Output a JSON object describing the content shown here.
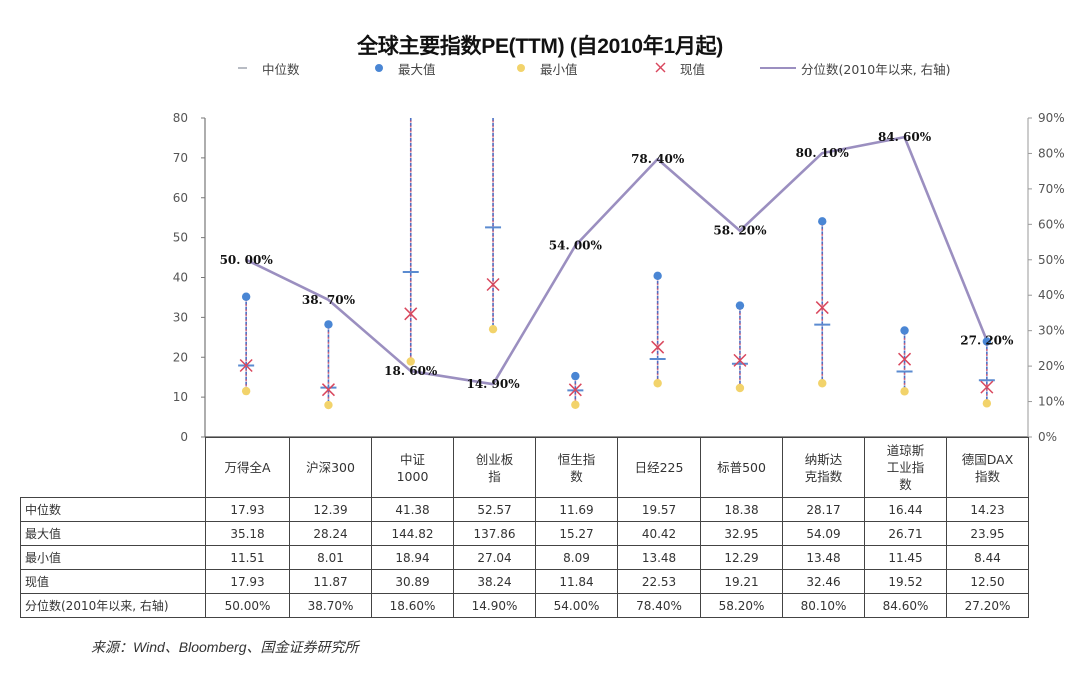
{
  "chart_data": {
    "type": "scatter+line",
    "title": "全球主要指数PE(TTM)  (自2010年1月起)",
    "legend": [
      {
        "key": "median",
        "label": "中位数",
        "marker": "dash",
        "color": "#5b8bd0"
      },
      {
        "key": "max",
        "label": "最大值",
        "marker": "circle",
        "color": "#4a86d4"
      },
      {
        "key": "min",
        "label": "最小值",
        "marker": "circle",
        "color": "#f2d36b"
      },
      {
        "key": "current",
        "label": "现值",
        "marker": "x",
        "color": "#d9475d"
      },
      {
        "key": "percentile",
        "label": "分位数(2010年以来, 右轴)",
        "marker": "line",
        "color": "#9b8fc0"
      }
    ],
    "legend_position": "top",
    "categories": [
      "万得全A",
      "沪深300",
      "中证\n1000",
      "创业板\n指",
      "恒生指\n数",
      "日经225",
      "标普500",
      "纳斯达\n克指数",
      "道琼斯\n工业指\n数",
      "德国DAX\n指数"
    ],
    "series": [
      {
        "name": "中位数",
        "key": "median",
        "values": [
          17.93,
          12.39,
          41.38,
          52.57,
          11.69,
          19.57,
          18.38,
          28.17,
          16.44,
          14.23
        ]
      },
      {
        "name": "最大值",
        "key": "max",
        "values": [
          35.18,
          28.24,
          144.82,
          137.86,
          15.27,
          40.42,
          32.95,
          54.09,
          26.71,
          23.95
        ]
      },
      {
        "name": "最小值",
        "key": "min",
        "values": [
          11.51,
          8.01,
          18.94,
          27.04,
          8.09,
          13.48,
          12.29,
          13.48,
          11.45,
          8.44
        ]
      },
      {
        "name": "现值",
        "key": "current",
        "values": [
          17.93,
          11.87,
          30.89,
          38.24,
          11.84,
          22.53,
          19.21,
          32.46,
          19.52,
          12.5
        ]
      },
      {
        "name": "分位数(2010年以来, 右轴)",
        "key": "percentile",
        "axis": "right",
        "values": [
          50.0,
          38.7,
          18.6,
          14.9,
          54.0,
          78.4,
          58.2,
          80.1,
          84.6,
          27.2
        ]
      }
    ],
    "percentile_labels": [
      "50. 00%",
      "38. 70%",
      "18. 60%",
      "14. 90%",
      "54. 00%",
      "78. 40%",
      "58. 20%",
      "80. 10%",
      "84. 60%",
      "27. 20%"
    ],
    "ylim": [
      0,
      80
    ],
    "yticks": [
      "0",
      "10",
      "20",
      "30",
      "40",
      "50",
      "60",
      "70",
      "80"
    ],
    "y2lim": [
      0,
      90
    ],
    "y2ticks": [
      "0%",
      "10%",
      "20%",
      "30%",
      "40%",
      "50%",
      "60%",
      "70%",
      "80%",
      "90%"
    ],
    "grid": false
  },
  "table": {
    "headers": [
      "万得全A",
      "沪深300",
      "中证 1000",
      "创业板 指",
      "恒生指 数",
      "日经225",
      "标普500",
      "纳斯达 克指数",
      "道琼斯 工业指 数",
      "德国DAX 指数"
    ],
    "rows": [
      {
        "label": "中位数",
        "cells": [
          "17.93",
          "12.39",
          "41.38",
          "52.57",
          "11.69",
          "19.57",
          "18.38",
          "28.17",
          "16.44",
          "14.23"
        ]
      },
      {
        "label": "最大值",
        "cells": [
          "35.18",
          "28.24",
          "144.82",
          "137.86",
          "15.27",
          "40.42",
          "32.95",
          "54.09",
          "26.71",
          "23.95"
        ]
      },
      {
        "label": "最小值",
        "cells": [
          "11.51",
          "8.01",
          "18.94",
          "27.04",
          "8.09",
          "13.48",
          "12.29",
          "13.48",
          "11.45",
          "8.44"
        ]
      },
      {
        "label": "现值",
        "cells": [
          "17.93",
          "11.87",
          "30.89",
          "38.24",
          "11.84",
          "22.53",
          "19.21",
          "32.46",
          "19.52",
          "12.50"
        ]
      },
      {
        "label": "分位数(2010年以来, 右轴)",
        "cells": [
          "50.00%",
          "38.70%",
          "18.60%",
          "14.90%",
          "54.00%",
          "78.40%",
          "58.20%",
          "80.10%",
          "84.60%",
          "27.20%"
        ]
      }
    ]
  },
  "source": "来源：Wind、Bloomberg、国金证券研究所"
}
